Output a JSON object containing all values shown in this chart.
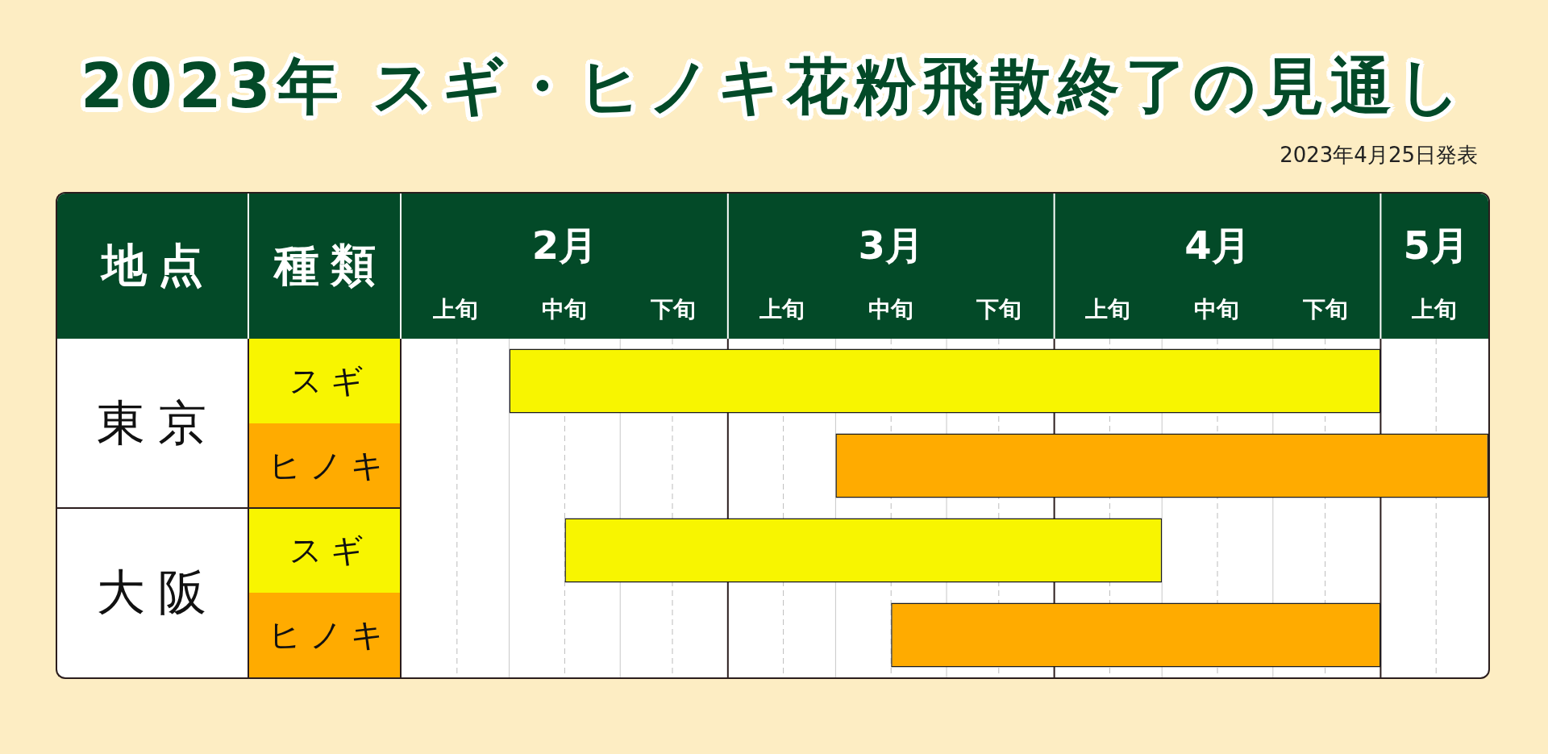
{
  "chart_data": {
    "type": "bar",
    "orientation": "horizontal",
    "title": "2023年 スギ・ヒノキ花粉飛散終了の見通し",
    "subtitle": "2023年4月25日発表",
    "ylabel": "地点",
    "legend_title": "種類",
    "legend": "left",
    "categories": [
      "東京",
      "大阪"
    ],
    "series": [
      {
        "name": "スギ",
        "color": "#f8f500",
        "base": [
          1.83,
          2.0
        ],
        "values": [
          2.67,
          1.83
        ]
      },
      {
        "name": "ヒノキ",
        "color": "#ffab00",
        "base": [
          2.83,
          3.0
        ],
        "values": [
          2.0,
          1.5
        ]
      }
    ],
    "xlim": [
      1.5,
      4.83
    ],
    "xticks": [
      {
        "value": 1.67,
        "label": null
      },
      {
        "value": 1.83,
        "label": null
      },
      {
        "value": 2,
        "label": "2月"
      },
      {
        "value": 2.17,
        "label": null
      },
      {
        "value": 2.33,
        "label": null
      },
      {
        "value": 2.67,
        "label": null
      },
      {
        "value": 2.83,
        "label": null
      },
      {
        "value": 3,
        "label": "3月"
      },
      {
        "value": 3.17,
        "label": null
      },
      {
        "value": 3.33,
        "label": null
      },
      {
        "value": 3.67,
        "label": null
      },
      {
        "value": 3.83,
        "label": null
      },
      {
        "value": 4,
        "label": "4月"
      },
      {
        "value": 4.17,
        "label": null
      },
      {
        "value": 4.33,
        "label": null
      },
      {
        "value": 4.67,
        "label": "5月"
      }
    ],
    "ref_lines": [
      {
        "axis": "x",
        "value": 2.5,
        "color": "#2b1d1d"
      },
      {
        "axis": "x",
        "value": 3.5,
        "color": "#2b1d1d"
      },
      {
        "axis": "x",
        "value": 4.5,
        "color": "#2b1d1d"
      }
    ],
    "annotations": [
      "上旬",
      "中旬",
      "下旬",
      "上旬",
      "中旬",
      "下旬",
      "上旬",
      "中旬",
      "下旬",
      "上旬"
    ],
    "grid": "x"
  }
}
